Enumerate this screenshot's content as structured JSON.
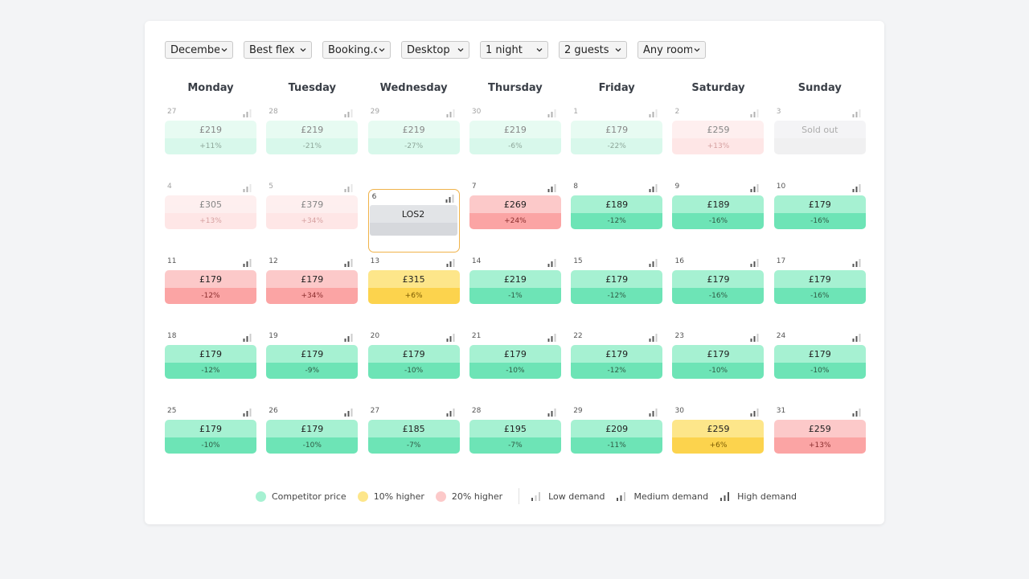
{
  "filters": {
    "month": "December",
    "rate": "Best flex",
    "channel": "Booking.co",
    "device": "Desktop",
    "nights": "1 night",
    "guests": "2 guests",
    "room": "Any room"
  },
  "weekdays": [
    "Monday",
    "Tuesday",
    "Wednesday",
    "Thursday",
    "Friday",
    "Saturday",
    "Sunday"
  ],
  "colors": {
    "green": "#a6f1d2",
    "yellow": "#fde68a",
    "pink": "#fcc9c9",
    "selected_outline": "#f0b34a"
  },
  "days": [
    {
      "day": "27",
      "price": "£219",
      "diff": "+11%",
      "status": "green",
      "past": true,
      "demand": "medium"
    },
    {
      "day": "28",
      "price": "£219",
      "diff": "-21%",
      "status": "green",
      "past": true,
      "demand": "medium"
    },
    {
      "day": "29",
      "price": "£219",
      "diff": "-27%",
      "status": "green",
      "past": true,
      "demand": "medium"
    },
    {
      "day": "30",
      "price": "£219",
      "diff": "-6%",
      "status": "green",
      "past": true,
      "demand": "medium"
    },
    {
      "day": "1",
      "price": "£179",
      "diff": "-22%",
      "status": "green",
      "past": true,
      "demand": "medium"
    },
    {
      "day": "2",
      "price": "£259",
      "diff": "+13%",
      "status": "pink",
      "past": true,
      "demand": "medium"
    },
    {
      "day": "3",
      "price": "Sold out",
      "diff": "",
      "status": "grey",
      "past": true,
      "demand": "medium"
    },
    {
      "day": "4",
      "price": "£305",
      "diff": "+13%",
      "status": "pink",
      "past": true,
      "demand": "medium"
    },
    {
      "day": "5",
      "price": "£379",
      "diff": "+34%",
      "status": "pink",
      "past": true,
      "demand": "medium"
    },
    {
      "day": "6",
      "price": "LOS2",
      "diff": "",
      "status": "selected",
      "past": false,
      "demand": "medium"
    },
    {
      "day": "7",
      "price": "£269",
      "diff": "+24%",
      "status": "pink",
      "past": false,
      "demand": "medium"
    },
    {
      "day": "8",
      "price": "£189",
      "diff": "-12%",
      "status": "green",
      "past": false,
      "demand": "medium"
    },
    {
      "day": "9",
      "price": "£189",
      "diff": "-16%",
      "status": "green",
      "past": false,
      "demand": "medium"
    },
    {
      "day": "10",
      "price": "£179",
      "diff": "-16%",
      "status": "green",
      "past": false,
      "demand": "medium"
    },
    {
      "day": "11",
      "price": "£179",
      "diff": "-12%",
      "status": "pink",
      "past": false,
      "demand": "medium"
    },
    {
      "day": "12",
      "price": "£179",
      "diff": "+34%",
      "status": "pink",
      "past": false,
      "demand": "medium"
    },
    {
      "day": "13",
      "price": "£315",
      "diff": "+6%",
      "status": "yellow",
      "past": false,
      "demand": "medium"
    },
    {
      "day": "14",
      "price": "£219",
      "diff": "-1%",
      "status": "green",
      "past": false,
      "demand": "medium"
    },
    {
      "day": "15",
      "price": "£179",
      "diff": "-12%",
      "status": "green",
      "past": false,
      "demand": "medium"
    },
    {
      "day": "16",
      "price": "£179",
      "diff": "-16%",
      "status": "green",
      "past": false,
      "demand": "medium"
    },
    {
      "day": "17",
      "price": "£179",
      "diff": "-16%",
      "status": "green",
      "past": false,
      "demand": "medium"
    },
    {
      "day": "18",
      "price": "£179",
      "diff": "-12%",
      "status": "green",
      "past": false,
      "demand": "medium"
    },
    {
      "day": "19",
      "price": "£179",
      "diff": "-9%",
      "status": "green",
      "past": false,
      "demand": "medium"
    },
    {
      "day": "20",
      "price": "£179",
      "diff": "-10%",
      "status": "green",
      "past": false,
      "demand": "medium"
    },
    {
      "day": "21",
      "price": "£179",
      "diff": "-10%",
      "status": "green",
      "past": false,
      "demand": "medium"
    },
    {
      "day": "22",
      "price": "£179",
      "diff": "-12%",
      "status": "green",
      "past": false,
      "demand": "medium"
    },
    {
      "day": "23",
      "price": "£179",
      "diff": "-10%",
      "status": "green",
      "past": false,
      "demand": "medium"
    },
    {
      "day": "24",
      "price": "£179",
      "diff": "-10%",
      "status": "green",
      "past": false,
      "demand": "medium"
    },
    {
      "day": "25",
      "price": "£179",
      "diff": "-10%",
      "status": "green",
      "past": false,
      "demand": "medium"
    },
    {
      "day": "26",
      "price": "£179",
      "diff": "-10%",
      "status": "green",
      "past": false,
      "demand": "medium"
    },
    {
      "day": "27",
      "price": "£185",
      "diff": "-7%",
      "status": "green",
      "past": false,
      "demand": "medium"
    },
    {
      "day": "28",
      "price": "£195",
      "diff": "-7%",
      "status": "green",
      "past": false,
      "demand": "medium"
    },
    {
      "day": "29",
      "price": "£209",
      "diff": "-11%",
      "status": "green",
      "past": false,
      "demand": "medium"
    },
    {
      "day": "30",
      "price": "£259",
      "diff": "+6%",
      "status": "yellow",
      "past": false,
      "demand": "medium"
    },
    {
      "day": "31",
      "price": "£259",
      "diff": "+13%",
      "status": "pink",
      "past": false,
      "demand": "medium"
    }
  ],
  "legend": {
    "competitor": "Competitor price",
    "ten_higher": "10% higher",
    "twenty_higher": "20% higher",
    "low": "Low demand",
    "medium": "Medium demand",
    "high": "High demand"
  }
}
